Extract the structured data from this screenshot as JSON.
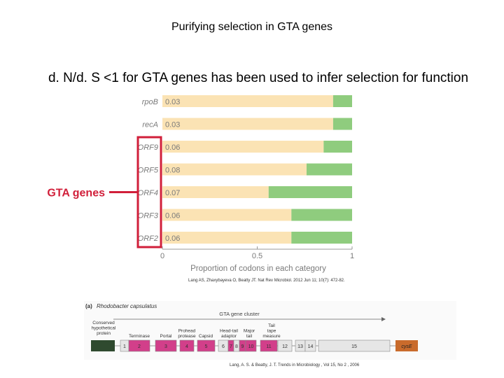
{
  "slide": {
    "title": "Purifying selection in GTA genes",
    "subtitle": "d. N/d. S <1 for GTA genes has been used to infer  selection for function",
    "gta_callout": "GTA genes"
  },
  "colors": {
    "purifying": "#fbe3b4",
    "other": "#8fcc7e",
    "highlight": "#d11f3a",
    "label": "#7a7a7a"
  },
  "chart_data": [
    {
      "type": "bar",
      "orientation": "horizontal",
      "stacked": true,
      "categories": [
        "rpoB",
        "recA",
        "ORF9",
        "ORF5",
        "ORF4",
        "ORF3",
        "ORF2"
      ],
      "data_labels": [
        "0.03",
        "0.03",
        "0.06",
        "0.08",
        "0.07",
        "0.06",
        "0.06"
      ],
      "series": [
        {
          "values": [
            0.9,
            0.9,
            0.85,
            0.76,
            0.56,
            0.68,
            0.68
          ]
        },
        {
          "values": [
            0.1,
            0.1,
            0.15,
            0.24,
            0.44,
            0.32,
            0.32
          ]
        }
      ],
      "x_ticks": [
        "0",
        "0.5",
        "1"
      ],
      "xlabel": "Proportion of codons in each category",
      "xlim": [
        0,
        1
      ],
      "highlighted_categories": [
        "ORF9",
        "ORF5",
        "ORF4",
        "ORF3",
        "ORF2"
      ]
    }
  ],
  "citation1": "Lang AS, Zhaxybayeva O, Beatty JT. Nat Rev Microbiol. 2012 Jun 11; 10(7): 472-82.",
  "panel_b": {
    "panel_label": "(a)",
    "organism": "Rhodobacter capsulatus",
    "cluster_title": "GTA gene cluster",
    "labels_left": [
      "Conserved",
      "hypothetical",
      "protein"
    ],
    "function_labels": [
      {
        "lines": [
          "Terminase"
        ]
      },
      {
        "lines": [
          "Portal"
        ]
      },
      {
        "lines": [
          "Prohead",
          "protease"
        ]
      },
      {
        "lines": [
          "Capsid"
        ]
      },
      {
        "lines": [
          "Head-tail",
          "adaptor"
        ]
      },
      {
        "lines": [
          "Major",
          "tail"
        ]
      },
      {
        "lines": [
          "Tail",
          "tape",
          "measure"
        ]
      }
    ],
    "genes": [
      "1",
      "2",
      "3",
      "4",
      "5",
      "6",
      "7",
      "8",
      "9",
      "10",
      "11",
      "12",
      "13",
      "14",
      "15"
    ],
    "end_gene": "cysE"
  },
  "citation2": "Lang, A. S. & Beatty, J. T. Trends in Microbiology , Vol 15, No 2 , 2006"
}
